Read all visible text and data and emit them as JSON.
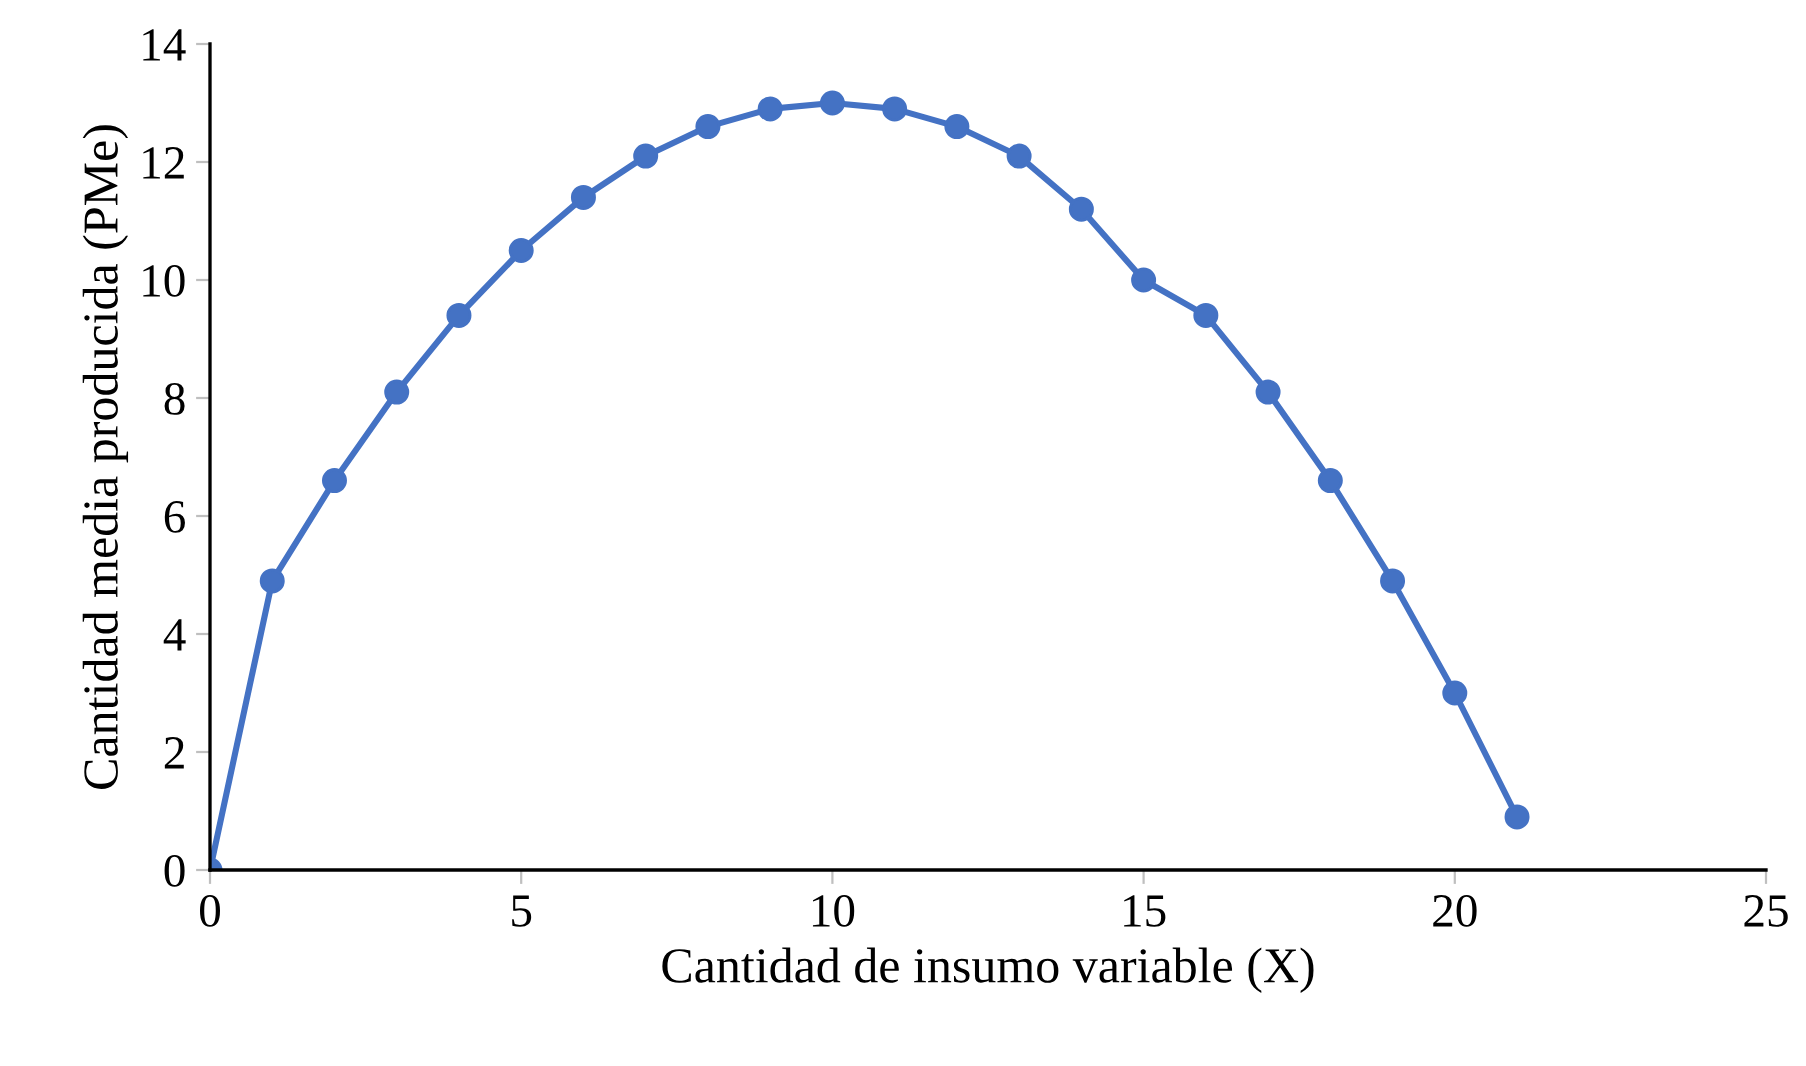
{
  "chart_data": {
    "type": "line",
    "xlabel": "Cantidad de insumo variable (X)",
    "ylabel": "Cantidad media producida (PMe)",
    "x": [
      0,
      1,
      2,
      3,
      4,
      5,
      6,
      7,
      8,
      9,
      10,
      11,
      12,
      13,
      14,
      15,
      16,
      17,
      18,
      19,
      20,
      21
    ],
    "series": [
      {
        "color": "#4472c4",
        "values": [
          0,
          4.9,
          6.6,
          8.1,
          9.4,
          10.5,
          11.4,
          12.1,
          12.6,
          12.9,
          13.0,
          12.9,
          12.6,
          12.1,
          11.2,
          10.0,
          9.4,
          8.1,
          6.6,
          4.9,
          3.0,
          0.9
        ]
      }
    ],
    "xlim": [
      0,
      25
    ],
    "xticks": [
      0,
      5,
      10,
      15,
      20,
      25
    ],
    "ylim": [
      0,
      14
    ],
    "yticks": [
      0,
      2,
      4,
      6,
      8,
      10,
      12,
      14
    ],
    "marker": "circle",
    "line_style": "solid",
    "grid": false
  }
}
